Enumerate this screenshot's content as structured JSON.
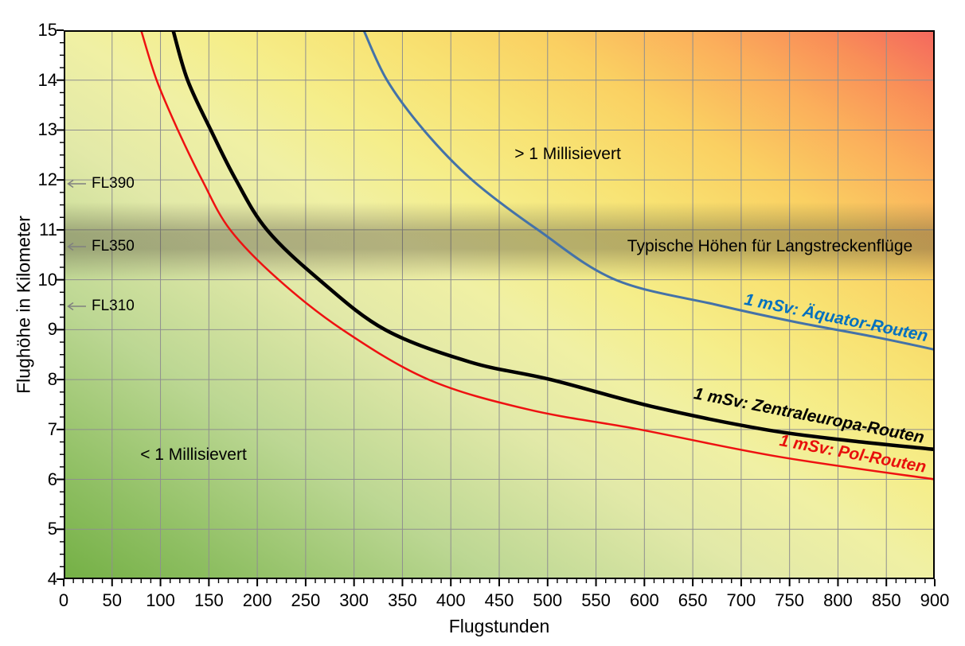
{
  "axes": {
    "x": {
      "title": "Flugstunden",
      "tick_values": [
        0,
        50,
        100,
        150,
        200,
        250,
        300,
        350,
        400,
        450,
        500,
        550,
        600,
        650,
        700,
        750,
        800,
        850,
        900
      ],
      "minor_step": 10,
      "range": [
        0,
        900
      ]
    },
    "y": {
      "title": "Flughöhe in Kilometer",
      "tick_values": [
        4,
        5,
        6,
        7,
        8,
        9,
        10,
        11,
        12,
        13,
        14,
        15
      ],
      "minor_step": 0.25,
      "range": [
        4,
        15
      ]
    }
  },
  "annotations": {
    "below_curves": "< 1 Millisievert",
    "above_curves": "> 1 Millisievert",
    "band_label": "Typische Höhen für Langstreckenflüge",
    "flight_levels": [
      {
        "label": "FL390",
        "altitude_km": 11.9
      },
      {
        "label": "FL350",
        "altitude_km": 10.65
      },
      {
        "label": "FL310",
        "altitude_km": 9.45
      }
    ]
  },
  "chart_data": {
    "type": "line",
    "title": "",
    "xlabel": "Flugstunden",
    "ylabel": "Flughöhe in Kilometer",
    "xlim": [
      0,
      900
    ],
    "ylim": [
      4,
      15
    ],
    "grid": true,
    "grid_color": "#8f8f8f",
    "frame_color": "#000000",
    "background_gradient": {
      "direction": "to top right",
      "stops": [
        {
          "pos": 0,
          "color": "#74b045"
        },
        {
          "pos": 10,
          "color": "#8fbf63"
        },
        {
          "pos": 25,
          "color": "#bcd793"
        },
        {
          "pos": 40,
          "color": "#e2e9a8"
        },
        {
          "pos": 50,
          "color": "#f0f0a4"
        },
        {
          "pos": 58,
          "color": "#f5ee8b"
        },
        {
          "pos": 68,
          "color": "#f8e272"
        },
        {
          "pos": 77,
          "color": "#fad062"
        },
        {
          "pos": 86,
          "color": "#fbaf5b"
        },
        {
          "pos": 93,
          "color": "#f98f58"
        },
        {
          "pos": 100,
          "color": "#f4675e"
        }
      ]
    },
    "band": {
      "label": "Typische Höhen für Langstreckenflüge",
      "top_km": 11.55,
      "bottom_km": 10.0,
      "color_rgb": "70,65,55",
      "peak_alpha": 0.36
    },
    "series": [
      {
        "name": "1 mSv: Pol-Routen",
        "color": "#ee1111",
        "label_color": "#e8100c",
        "width": 2.5,
        "points": [
          [
            80,
            15
          ],
          [
            96,
            14
          ],
          [
            118,
            13
          ],
          [
            143,
            12
          ],
          [
            172,
            11
          ],
          [
            222,
            10
          ],
          [
            288,
            9
          ],
          [
            377,
            8
          ],
          [
            480,
            7.4
          ],
          [
            595,
            7
          ],
          [
            740,
            6.45
          ],
          [
            900,
            6.0
          ]
        ]
      },
      {
        "name": "1 mSv: Zentraleuropa-Routen",
        "color": "#000000",
        "label_color": "#000000",
        "width": 4.5,
        "points": [
          [
            113,
            15
          ],
          [
            128,
            14
          ],
          [
            152,
            13
          ],
          [
            178,
            12
          ],
          [
            210,
            11
          ],
          [
            264,
            10
          ],
          [
            332,
            9
          ],
          [
            420,
            8.35
          ],
          [
            503,
            8
          ],
          [
            610,
            7.45
          ],
          [
            724,
            7
          ],
          [
            810,
            6.78
          ],
          [
            900,
            6.6
          ]
        ]
      },
      {
        "name": "1 mSv: Äquator-Routen",
        "color": "#4472a8",
        "label_color": "#0070c0",
        "width": 3,
        "points": [
          [
            310,
            15
          ],
          [
            334,
            14
          ],
          [
            372,
            13
          ],
          [
            422,
            12
          ],
          [
            490,
            11
          ],
          [
            570,
            10
          ],
          [
            674,
            9.5
          ],
          [
            757,
            9.15
          ],
          [
            839,
            8.85
          ],
          [
            900,
            8.6
          ]
        ]
      }
    ]
  }
}
